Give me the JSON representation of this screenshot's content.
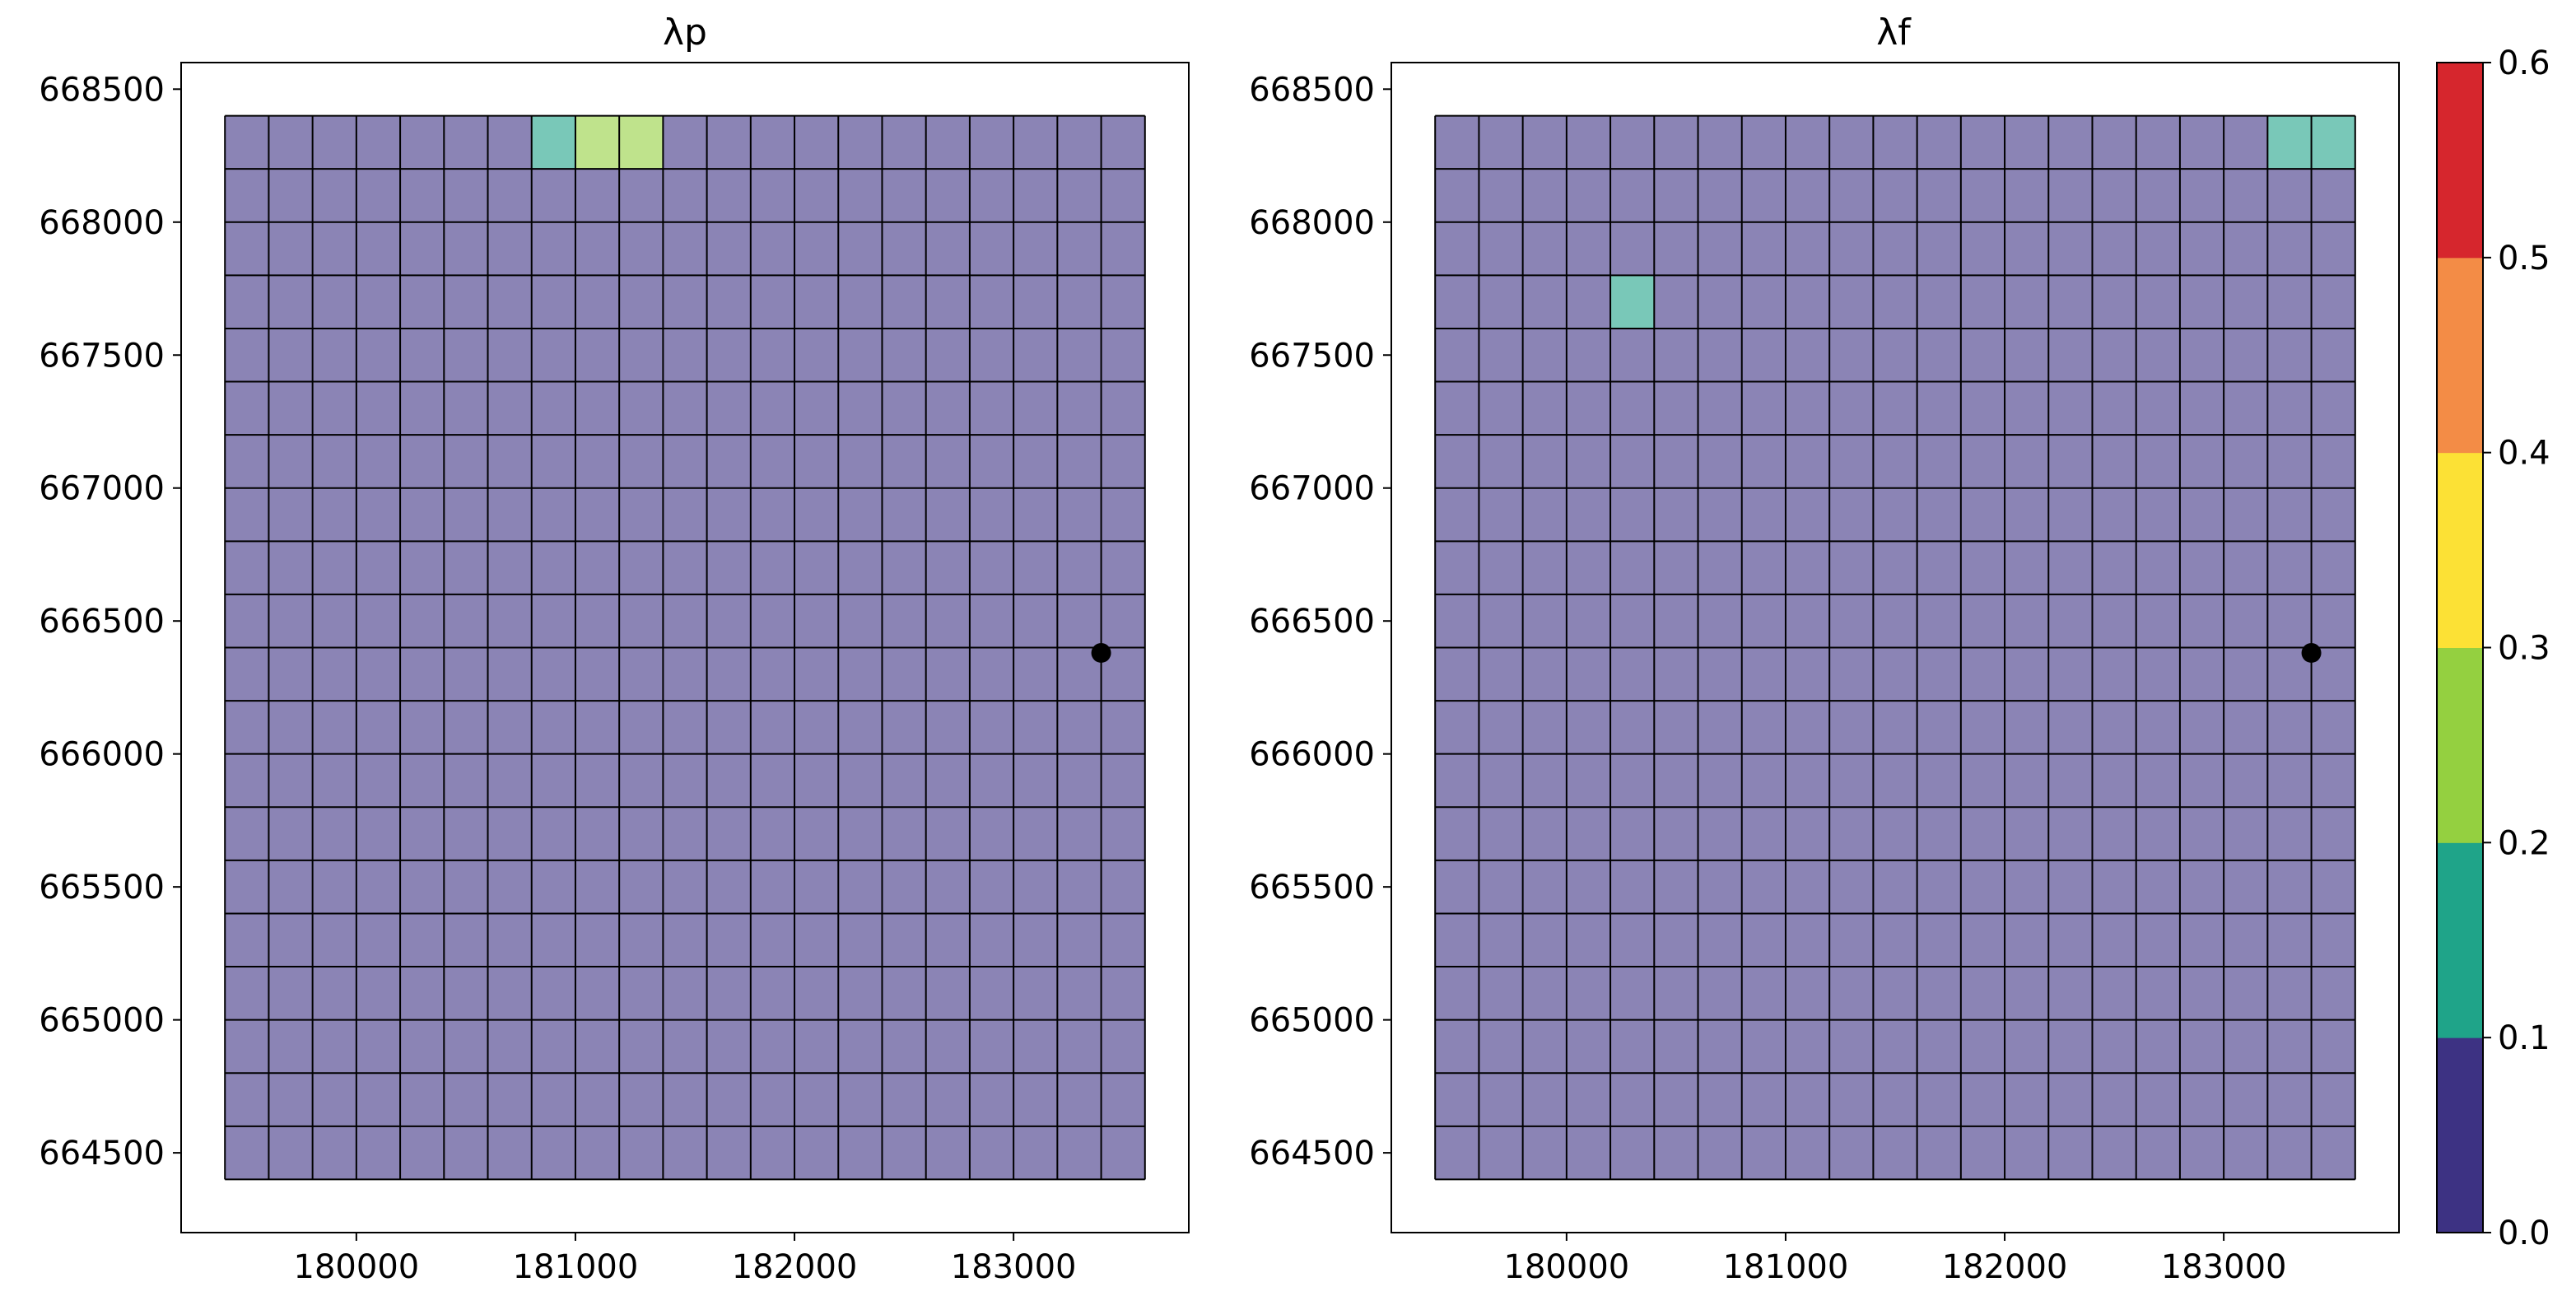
{
  "chart_data": {
    "type": "heatmap",
    "subplots": [
      {
        "title": "λp",
        "x_ticks": [
          180000,
          181000,
          182000,
          183000
        ],
        "y_ticks": [
          664500,
          665000,
          665500,
          666000,
          666500,
          667000,
          667500,
          668000,
          668500
        ],
        "xlim": [
          179200,
          183800
        ],
        "ylim": [
          664200,
          668600
        ],
        "grid_x_range": [
          179400,
          183600
        ],
        "grid_y_range": [
          664400,
          668400
        ],
        "rows": 20,
        "cols": 21,
        "marker": {
          "x": 183400,
          "y": 666380
        },
        "bands": [
          [
            0,
            0,
            0,
            0,
            0,
            0,
            0,
            1,
            2,
            2,
            0,
            0,
            0,
            0,
            0,
            0,
            0,
            0,
            0,
            0,
            0
          ],
          [
            0,
            0,
            0,
            0,
            0,
            0,
            0,
            0,
            0,
            0,
            0,
            0,
            0,
            0,
            0,
            0,
            0,
            0,
            0,
            0,
            0
          ],
          [
            0,
            0,
            0,
            0,
            0,
            0,
            0,
            0,
            0,
            0,
            0,
            0,
            0,
            0,
            0,
            0,
            0,
            0,
            0,
            0,
            0
          ],
          [
            0,
            0,
            0,
            0,
            0,
            0,
            0,
            0,
            0,
            0,
            0,
            0,
            0,
            0,
            0,
            0,
            0,
            0,
            0,
            0,
            0
          ],
          [
            0,
            0,
            0,
            0,
            0,
            0,
            0,
            0,
            0,
            0,
            0,
            0,
            0,
            0,
            0,
            0,
            0,
            0,
            0,
            0,
            0
          ],
          [
            0,
            0,
            0,
            0,
            0,
            0,
            0,
            0,
            0,
            0,
            0,
            0,
            0,
            0,
            0,
            0,
            0,
            0,
            0,
            0,
            0
          ],
          [
            0,
            0,
            0,
            0,
            0,
            0,
            0,
            0,
            0,
            0,
            0,
            0,
            0,
            0,
            0,
            0,
            0,
            0,
            0,
            0,
            0
          ],
          [
            0,
            0,
            0,
            0,
            0,
            0,
            0,
            0,
            0,
            0,
            0,
            0,
            0,
            0,
            0,
            0,
            0,
            0,
            0,
            0,
            0
          ],
          [
            0,
            0,
            0,
            0,
            0,
            0,
            0,
            0,
            0,
            0,
            0,
            0,
            0,
            0,
            0,
            0,
            0,
            0,
            0,
            0,
            0
          ],
          [
            0,
            0,
            0,
            0,
            0,
            0,
            0,
            0,
            0,
            0,
            0,
            0,
            0,
            0,
            0,
            0,
            0,
            0,
            0,
            0,
            0
          ],
          [
            0,
            0,
            0,
            0,
            0,
            0,
            0,
            0,
            0,
            0,
            0,
            0,
            0,
            0,
            0,
            0,
            0,
            0,
            0,
            0,
            0
          ],
          [
            0,
            0,
            0,
            0,
            0,
            0,
            0,
            0,
            0,
            0,
            0,
            0,
            0,
            0,
            0,
            0,
            0,
            0,
            0,
            0,
            0
          ],
          [
            0,
            0,
            0,
            0,
            0,
            0,
            0,
            0,
            0,
            0,
            0,
            0,
            0,
            0,
            0,
            0,
            0,
            0,
            0,
            0,
            0
          ],
          [
            0,
            0,
            0,
            0,
            0,
            0,
            0,
            0,
            0,
            0,
            0,
            0,
            0,
            0,
            0,
            0,
            0,
            0,
            0,
            0,
            0
          ],
          [
            0,
            0,
            0,
            0,
            0,
            0,
            0,
            0,
            0,
            0,
            0,
            0,
            0,
            0,
            0,
            0,
            0,
            0,
            0,
            0,
            0
          ],
          [
            0,
            0,
            0,
            0,
            0,
            0,
            0,
            0,
            0,
            0,
            0,
            0,
            0,
            0,
            0,
            0,
            0,
            0,
            0,
            0,
            0
          ],
          [
            0,
            0,
            0,
            0,
            0,
            0,
            0,
            0,
            0,
            0,
            0,
            0,
            0,
            0,
            0,
            0,
            0,
            0,
            0,
            0,
            0
          ],
          [
            0,
            0,
            0,
            0,
            0,
            0,
            0,
            0,
            0,
            0,
            0,
            0,
            0,
            0,
            0,
            0,
            0,
            0,
            0,
            0,
            0
          ],
          [
            0,
            0,
            0,
            0,
            0,
            0,
            0,
            0,
            0,
            0,
            0,
            0,
            0,
            0,
            0,
            0,
            0,
            0,
            0,
            0,
            0
          ],
          [
            0,
            0,
            0,
            0,
            0,
            0,
            0,
            0,
            0,
            0,
            0,
            0,
            0,
            0,
            0,
            0,
            0,
            0,
            0,
            0,
            0
          ]
        ]
      },
      {
        "title": "λf",
        "x_ticks": [
          180000,
          181000,
          182000,
          183000
        ],
        "y_ticks": [
          664500,
          665000,
          665500,
          666000,
          666500,
          667000,
          667500,
          668000,
          668500
        ],
        "xlim": [
          179200,
          183800
        ],
        "ylim": [
          664200,
          668600
        ],
        "grid_x_range": [
          179400,
          183600
        ],
        "grid_y_range": [
          664400,
          668400
        ],
        "rows": 20,
        "cols": 21,
        "marker": {
          "x": 183400,
          "y": 666380
        },
        "bands": [
          [
            0,
            0,
            0,
            0,
            0,
            0,
            0,
            0,
            0,
            0,
            0,
            0,
            0,
            0,
            0,
            0,
            0,
            0,
            0,
            1,
            1
          ],
          [
            0,
            0,
            0,
            0,
            0,
            0,
            0,
            0,
            0,
            0,
            0,
            0,
            0,
            0,
            0,
            0,
            0,
            0,
            0,
            0,
            0
          ],
          [
            0,
            0,
            0,
            0,
            0,
            0,
            0,
            0,
            0,
            0,
            0,
            0,
            0,
            0,
            0,
            0,
            0,
            0,
            0,
            0,
            0
          ],
          [
            0,
            0,
            0,
            0,
            1,
            0,
            0,
            0,
            0,
            0,
            0,
            0,
            0,
            0,
            0,
            0,
            0,
            0,
            0,
            0,
            0
          ],
          [
            0,
            0,
            0,
            0,
            0,
            0,
            0,
            0,
            0,
            0,
            0,
            0,
            0,
            0,
            0,
            0,
            0,
            0,
            0,
            0,
            0
          ],
          [
            0,
            0,
            0,
            0,
            0,
            0,
            0,
            0,
            0,
            0,
            0,
            0,
            0,
            0,
            0,
            0,
            0,
            0,
            0,
            0,
            0
          ],
          [
            0,
            0,
            0,
            0,
            0,
            0,
            0,
            0,
            0,
            0,
            0,
            0,
            0,
            0,
            0,
            0,
            0,
            0,
            0,
            0,
            0
          ],
          [
            0,
            0,
            0,
            0,
            0,
            0,
            0,
            0,
            0,
            0,
            0,
            0,
            0,
            0,
            0,
            0,
            0,
            0,
            0,
            0,
            0
          ],
          [
            0,
            0,
            0,
            0,
            0,
            0,
            0,
            0,
            0,
            0,
            0,
            0,
            0,
            0,
            0,
            0,
            0,
            0,
            0,
            0,
            0
          ],
          [
            0,
            0,
            0,
            0,
            0,
            0,
            0,
            0,
            0,
            0,
            0,
            0,
            0,
            0,
            0,
            0,
            0,
            0,
            0,
            0,
            0
          ],
          [
            0,
            0,
            0,
            0,
            0,
            0,
            0,
            0,
            0,
            0,
            0,
            0,
            0,
            0,
            0,
            0,
            0,
            0,
            0,
            0,
            0
          ],
          [
            0,
            0,
            0,
            0,
            0,
            0,
            0,
            0,
            0,
            0,
            0,
            0,
            0,
            0,
            0,
            0,
            0,
            0,
            0,
            0,
            0
          ],
          [
            0,
            0,
            0,
            0,
            0,
            0,
            0,
            0,
            0,
            0,
            0,
            0,
            0,
            0,
            0,
            0,
            0,
            0,
            0,
            0,
            0
          ],
          [
            0,
            0,
            0,
            0,
            0,
            0,
            0,
            0,
            0,
            0,
            0,
            0,
            0,
            0,
            0,
            0,
            0,
            0,
            0,
            0,
            0
          ],
          [
            0,
            0,
            0,
            0,
            0,
            0,
            0,
            0,
            0,
            0,
            0,
            0,
            0,
            0,
            0,
            0,
            0,
            0,
            0,
            0,
            0
          ],
          [
            0,
            0,
            0,
            0,
            0,
            0,
            0,
            0,
            0,
            0,
            0,
            0,
            0,
            0,
            0,
            0,
            0,
            0,
            0,
            0,
            0
          ],
          [
            0,
            0,
            0,
            0,
            0,
            0,
            0,
            0,
            0,
            0,
            0,
            0,
            0,
            0,
            0,
            0,
            0,
            0,
            0,
            0,
            0
          ],
          [
            0,
            0,
            0,
            0,
            0,
            0,
            0,
            0,
            0,
            0,
            0,
            0,
            0,
            0,
            0,
            0,
            0,
            0,
            0,
            0,
            0
          ],
          [
            0,
            0,
            0,
            0,
            0,
            0,
            0,
            0,
            0,
            0,
            0,
            0,
            0,
            0,
            0,
            0,
            0,
            0,
            0,
            0,
            0
          ],
          [
            0,
            0,
            0,
            0,
            0,
            0,
            0,
            0,
            0,
            0,
            0,
            0,
            0,
            0,
            0,
            0,
            0,
            0,
            0,
            0,
            0
          ]
        ]
      }
    ],
    "colorbar": {
      "range": [
        0.0,
        0.6
      ],
      "ticks": [
        "0.0",
        "0.1",
        "0.2",
        "0.3",
        "0.4",
        "0.5",
        "0.6"
      ],
      "colors": [
        "#3d3283",
        "#1fa489",
        "#94d040",
        "#fce135",
        "#f38c46",
        "#d6262d"
      ]
    },
    "styling": {
      "cell_alpha": 0.6,
      "gridline_color": "#000000",
      "marker_color": "#000000"
    }
  }
}
